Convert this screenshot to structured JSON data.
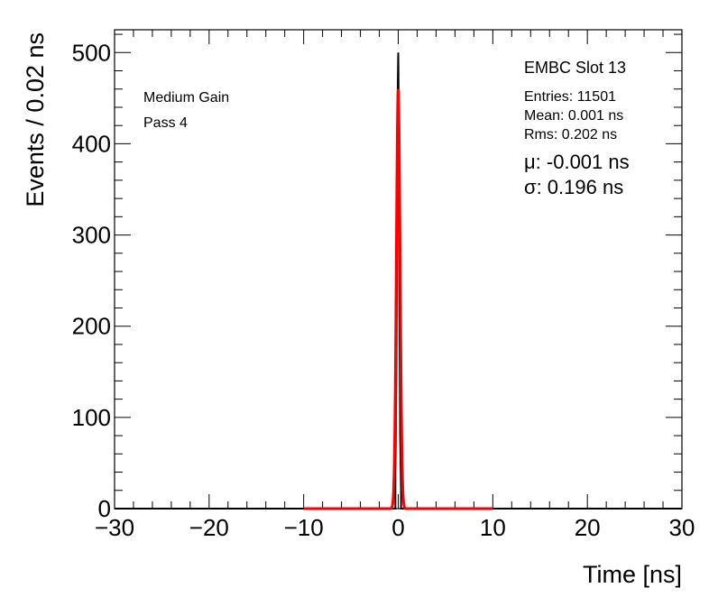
{
  "chart_data": {
    "type": "line",
    "xlabel": "Time [ns]",
    "ylabel": "Events / 0.02 ns",
    "xlim": [
      -30,
      30
    ],
    "ylim": [
      0,
      525
    ],
    "grid": false,
    "x_ticks": [
      -30,
      -20,
      -10,
      0,
      10,
      20,
      30
    ],
    "x_tick_labels": [
      "−30",
      "−20",
      "−10",
      "0",
      "10",
      "20",
      "30"
    ],
    "y_ticks": [
      0,
      100,
      200,
      300,
      400,
      500
    ],
    "y_tick_labels": [
      "0",
      "100",
      "200",
      "300",
      "400",
      "500"
    ],
    "annotations": {
      "left": [
        "Medium Gain",
        "Pass 4"
      ],
      "title": "EMBC Slot 13",
      "stats": [
        "Entries: 11501",
        "Mean: 0.001 ns",
        "Rms: 0.202 ns"
      ],
      "fit": [
        "μ: -0.001 ns",
        "σ: 0.196 ns"
      ]
    },
    "series": [
      {
        "kind": "histogram",
        "color": "#000000",
        "x": [
          -0.3,
          -0.2,
          -0.16,
          -0.12,
          -0.08,
          -0.04,
          0.0,
          0.02,
          0.04,
          0.08,
          0.12,
          0.16,
          0.2,
          0.3
        ],
        "y": [
          40,
          140,
          210,
          320,
          420,
          470,
          500,
          480,
          440,
          340,
          230,
          160,
          80,
          20
        ]
      },
      {
        "kind": "gaussian-fit",
        "color": "#ff0000",
        "x_range": [
          -10,
          10
        ],
        "amplitude": 460,
        "mu": -0.001,
        "sigma": 0.196
      }
    ]
  }
}
